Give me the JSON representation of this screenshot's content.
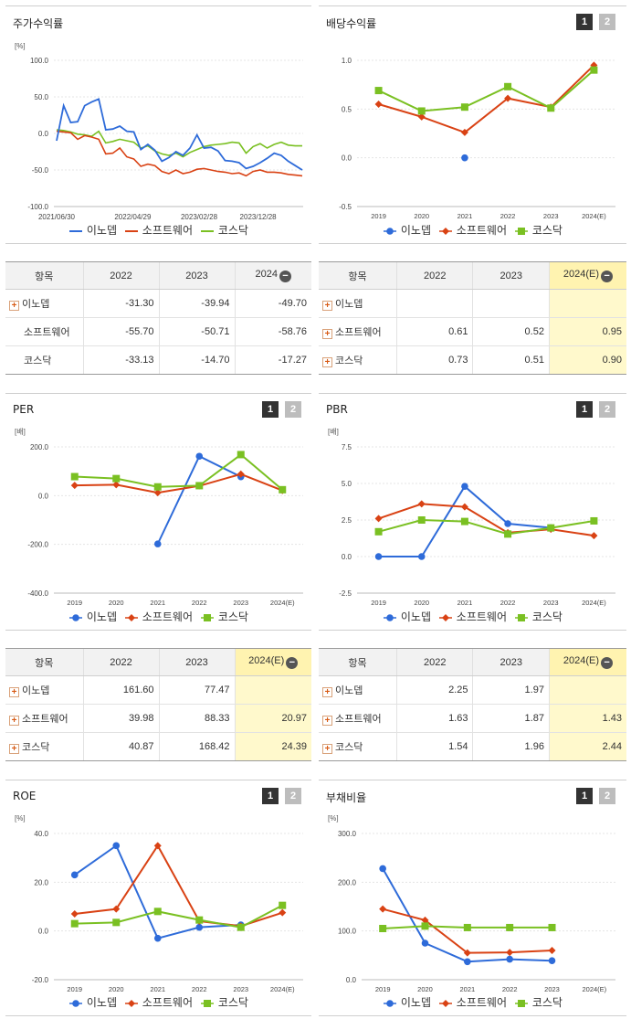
{
  "colors": {
    "inodep": "#2e6bd9",
    "software": "#d94214",
    "kosdaq": "#7ac022"
  },
  "legend_names": [
    "이노뎁",
    "소프트웨어",
    "코스닥"
  ],
  "panels": {
    "stock": {
      "title": "주가수익률"
    },
    "dividend": {
      "title": "배당수익률",
      "t1": "1",
      "t2": "2"
    },
    "per": {
      "title": "PER",
      "t1": "1",
      "t2": "2"
    },
    "pbr": {
      "title": "PBR",
      "t1": "1",
      "t2": "2"
    },
    "roe": {
      "title": "ROE",
      "t1": "1",
      "t2": "2"
    },
    "debt": {
      "title": "부채비율",
      "t1": "1",
      "t2": "2"
    }
  },
  "chart_data": [
    {
      "id": "stock",
      "type": "line",
      "title": "주가수익률",
      "ylabel": "[%]",
      "ylim": [
        -100,
        100
      ],
      "yticks": [
        "100.0",
        "50.0",
        "0.0",
        "-50.0",
        "-100.0"
      ],
      "xticks": [
        "2021/06/30",
        "2022/04/29",
        "2023/02/28",
        "2023/12/28"
      ],
      "series": [
        {
          "name": "이노뎁",
          "values": [
            -10,
            38,
            15,
            16,
            38,
            43,
            47,
            5,
            6,
            10,
            3,
            2,
            -22,
            -15,
            -23,
            -38,
            -33,
            -25,
            -30,
            -20,
            -2,
            -20,
            -19,
            -24,
            -37,
            -38,
            -40,
            -48,
            -45,
            -40,
            -34,
            -27,
            -30,
            -38,
            -44,
            -50
          ]
        },
        {
          "name": "소프트웨어",
          "values": [
            3,
            2,
            1,
            -8,
            -3,
            -5,
            -8,
            -28,
            -27,
            -20,
            -32,
            -35,
            -45,
            -42,
            -44,
            -52,
            -55,
            -50,
            -55,
            -53,
            -49,
            -48,
            -50,
            -52,
            -53,
            -55,
            -54,
            -58,
            -52,
            -50,
            -53,
            -53,
            -54,
            -56,
            -57,
            -58
          ]
        },
        {
          "name": "코스닥",
          "values": [
            5,
            4,
            2,
            -1,
            -2,
            -4,
            3,
            -13,
            -11,
            -8,
            -10,
            -12,
            -20,
            -17,
            -24,
            -28,
            -30,
            -27,
            -32,
            -26,
            -22,
            -18,
            -16,
            -15,
            -14,
            -12,
            -13,
            -27,
            -18,
            -14,
            -20,
            -15,
            -12,
            -16,
            -17,
            -17
          ]
        }
      ]
    },
    {
      "id": "dividend",
      "type": "line",
      "title": "배당수익률",
      "ylim": [
        -0.5,
        1.0
      ],
      "yticks": [
        "1.0",
        "0.5",
        "0.0",
        "-0.5"
      ],
      "categories": [
        "2019",
        "2020",
        "2021",
        "2022",
        "2023",
        "2024(E)"
      ],
      "series": [
        {
          "name": "이노뎁",
          "values": [
            null,
            null,
            0,
            null,
            null,
            null
          ]
        },
        {
          "name": "소프트웨어",
          "values": [
            0.55,
            0.42,
            0.26,
            0.61,
            0.52,
            0.95
          ]
        },
        {
          "name": "코스닥",
          "values": [
            0.69,
            0.48,
            0.52,
            0.73,
            0.51,
            0.9
          ]
        }
      ]
    },
    {
      "id": "per",
      "type": "line",
      "title": "PER",
      "ylabel": "[배]",
      "ylim": [
        -400,
        200
      ],
      "yticks": [
        "200.0",
        "0.0",
        "-200.0",
        "-400.0"
      ],
      "categories": [
        "2019",
        "2020",
        "2021",
        "2022",
        "2023",
        "2024(E)"
      ],
      "series": [
        {
          "name": "이노뎁",
          "values": [
            null,
            null,
            -198,
            161.6,
            77.47,
            null
          ]
        },
        {
          "name": "소프트웨어",
          "values": [
            42,
            45,
            12,
            39.98,
            88.33,
            20.97
          ]
        },
        {
          "name": "코스닥",
          "values": [
            78,
            70,
            36,
            40.87,
            168.42,
            24.39
          ]
        }
      ]
    },
    {
      "id": "pbr",
      "type": "line",
      "title": "PBR",
      "ylabel": "[배]",
      "ylim": [
        -2.5,
        7.5
      ],
      "yticks": [
        "7.5",
        "5.0",
        "2.5",
        "0.0",
        "-2.5"
      ],
      "categories": [
        "2019",
        "2020",
        "2021",
        "2022",
        "2023",
        "2024(E)"
      ],
      "series": [
        {
          "name": "이노뎁",
          "values": [
            0,
            0,
            4.8,
            2.25,
            1.97,
            null
          ]
        },
        {
          "name": "소프트웨어",
          "values": [
            2.6,
            3.6,
            3.4,
            1.63,
            1.87,
            1.43
          ]
        },
        {
          "name": "코스닥",
          "values": [
            1.7,
            2.5,
            2.4,
            1.54,
            1.96,
            2.44
          ]
        }
      ]
    },
    {
      "id": "roe",
      "type": "line",
      "title": "ROE",
      "ylabel": "[%]",
      "ylim": [
        -20,
        40
      ],
      "yticks": [
        "40.0",
        "20.0",
        "0.0",
        "-20.0"
      ],
      "categories": [
        "2019",
        "2020",
        "2021",
        "2022",
        "2023",
        "2024(E)"
      ],
      "series": [
        {
          "name": "이노뎁",
          "values": [
            23,
            35,
            -3,
            1.5,
            2.5,
            null
          ]
        },
        {
          "name": "소프트웨어",
          "values": [
            7,
            9,
            35,
            4,
            2,
            7.5
          ]
        },
        {
          "name": "코스닥",
          "values": [
            3,
            3.5,
            8,
            4.5,
            1.5,
            10.5
          ]
        }
      ]
    },
    {
      "id": "debt",
      "type": "line",
      "title": "부채비율",
      "ylabel": "[%]",
      "ylim": [
        0,
        300
      ],
      "yticks": [
        "300.0",
        "200.0",
        "100.0",
        "0.0"
      ],
      "categories": [
        "2019",
        "2020",
        "2021",
        "2022",
        "2023",
        "2024(E)"
      ],
      "series": [
        {
          "name": "이노뎁",
          "values": [
            228,
            75,
            37,
            42,
            39,
            null
          ]
        },
        {
          "name": "소프트웨어",
          "values": [
            145,
            122,
            55,
            56,
            60,
            null
          ]
        },
        {
          "name": "코스닥",
          "values": [
            105,
            110,
            107,
            107,
            107,
            null
          ]
        }
      ]
    }
  ],
  "tables": {
    "stock": {
      "headers": [
        "항목",
        "2022",
        "2023",
        "2024"
      ],
      "rows": [
        {
          "name": "이노뎁",
          "vals": [
            "-31.30",
            "-39.94",
            "-49.70"
          ]
        },
        {
          "name": "소프트웨어",
          "vals": [
            "-55.70",
            "-50.71",
            "-58.76"
          ]
        },
        {
          "name": "코스닥",
          "vals": [
            "-33.13",
            "-14.70",
            "-17.27"
          ]
        }
      ]
    },
    "dividend": {
      "headers": [
        "항목",
        "2022",
        "2023",
        "2024(E)"
      ],
      "rows": [
        {
          "name": "이노뎁",
          "vals": [
            "",
            "",
            ""
          ]
        },
        {
          "name": "소프트웨어",
          "vals": [
            "0.61",
            "0.52",
            "0.95"
          ]
        },
        {
          "name": "코스닥",
          "vals": [
            "0.73",
            "0.51",
            "0.90"
          ]
        }
      ]
    },
    "per": {
      "headers": [
        "항목",
        "2022",
        "2023",
        "2024(E)"
      ],
      "rows": [
        {
          "name": "이노뎁",
          "vals": [
            "161.60",
            "77.47",
            ""
          ]
        },
        {
          "name": "소프트웨어",
          "vals": [
            "39.98",
            "88.33",
            "20.97"
          ]
        },
        {
          "name": "코스닥",
          "vals": [
            "40.87",
            "168.42",
            "24.39"
          ]
        }
      ]
    },
    "pbr": {
      "headers": [
        "항목",
        "2022",
        "2023",
        "2024(E)"
      ],
      "rows": [
        {
          "name": "이노뎁",
          "vals": [
            "2.25",
            "1.97",
            ""
          ]
        },
        {
          "name": "소프트웨어",
          "vals": [
            "1.63",
            "1.87",
            "1.43"
          ]
        },
        {
          "name": "코스닥",
          "vals": [
            "1.54",
            "1.96",
            "2.44"
          ]
        }
      ]
    }
  }
}
